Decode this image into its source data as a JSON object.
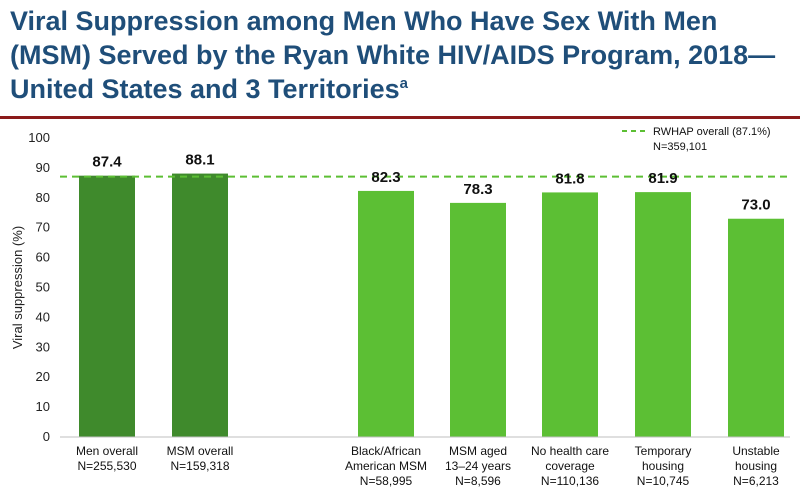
{
  "title": {
    "text": "Viral Suppression among Men Who Have Sex With Men (MSM) Served by the Ryan White HIV/AIDS Program, 2018—United States and 3 Territories",
    "superscript": "a"
  },
  "chart_data": {
    "type": "bar",
    "ylabel": "Viral suppression (%)",
    "ylim": [
      0,
      100
    ],
    "yticks": [
      0,
      10,
      20,
      30,
      40,
      50,
      60,
      70,
      80,
      90,
      100
    ],
    "grid": false,
    "categories": [
      {
        "lines": [
          "Men overall",
          "N=255,530"
        ]
      },
      {
        "lines": [
          "MSM overall",
          "N=159,318"
        ]
      },
      {
        "lines": [
          "Black/African",
          "American MSM",
          "N=58,995"
        ]
      },
      {
        "lines": [
          "MSM aged",
          "13–24 years",
          "N=8,596"
        ]
      },
      {
        "lines": [
          "No health care",
          "coverage",
          "N=110,136"
        ]
      },
      {
        "lines": [
          "Temporary",
          "housing",
          "N=10,745"
        ]
      },
      {
        "lines": [
          "Unstable",
          "housing",
          "N=6,213"
        ]
      }
    ],
    "values": [
      87.4,
      88.1,
      82.3,
      78.3,
      81.8,
      81.9,
      73.0
    ],
    "value_labels": [
      "87.4",
      "88.1",
      "82.3",
      "78.3",
      "81.8",
      "81.9",
      "73.0"
    ],
    "bar_colors": [
      "#3f8a2c",
      "#3f8a2c",
      "#5cbf34",
      "#5cbf34",
      "#5cbf34",
      "#5cbf34",
      "#5cbf34"
    ],
    "reference_line": {
      "value": 87.1,
      "color": "#5cbf34"
    },
    "legend": {
      "position": "top-right",
      "lines": [
        "RWHAP overall (87.1%)",
        "N=359,101"
      ]
    }
  }
}
